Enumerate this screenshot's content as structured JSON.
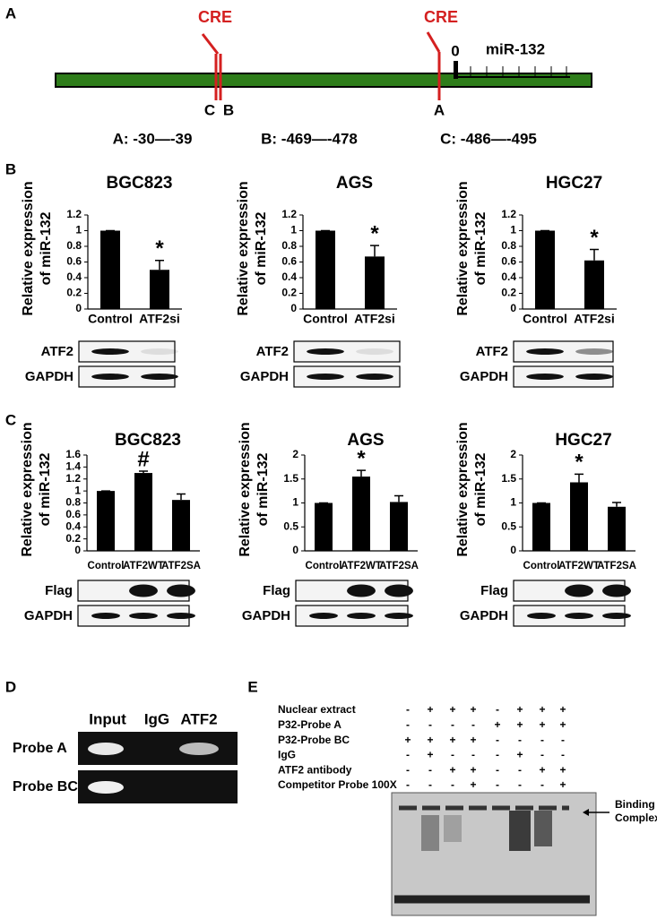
{
  "panel_letters": [
    "A",
    "B",
    "C",
    "D",
    "E"
  ],
  "panel_a": {
    "cre_labels": [
      "CRE",
      "CRE"
    ],
    "tss": "0",
    "gene": "miR-132",
    "site_labels": [
      "C",
      "B",
      "A"
    ],
    "positions": [
      "A: -30—-39",
      "B: -469—-478",
      "C: -486—-495"
    ]
  },
  "chart_data": [
    {
      "type": "bar",
      "title": "BGC823",
      "y_label": [
        "Relative expression",
        "of miR-132"
      ],
      "categories": [
        "Control",
        "ATF2si"
      ],
      "values": [
        1,
        0.5
      ],
      "errors": [
        0,
        0.12
      ],
      "value_annotations": [
        null,
        "*"
      ],
      "color": "#000000",
      "ylim": [
        0,
        1.2
      ],
      "yticks": [
        0,
        0.2,
        0.4,
        0.6,
        0.8,
        1,
        1.2
      ],
      "blot_labels": [
        "ATF2",
        "GAPDH"
      ]
    },
    {
      "type": "bar",
      "title": "AGS",
      "y_label": [
        "Relative expression",
        "of miR-132"
      ],
      "categories": [
        "Control",
        "ATF2si"
      ],
      "values": [
        1,
        0.67
      ],
      "errors": [
        0,
        0.14
      ],
      "value_annotations": [
        null,
        "*"
      ],
      "color": "#000000",
      "ylim": [
        0,
        1.2
      ],
      "yticks": [
        0,
        0.2,
        0.4,
        0.6,
        0.8,
        1,
        1.2
      ],
      "blot_labels": [
        "ATF2",
        "GAPDH"
      ]
    },
    {
      "type": "bar",
      "title": "HGC27",
      "y_label": [
        "Relative expression",
        "of miR-132"
      ],
      "categories": [
        "Control",
        "ATF2si"
      ],
      "values": [
        1,
        0.62
      ],
      "errors": [
        0,
        0.14
      ],
      "value_annotations": [
        null,
        "*"
      ],
      "color": "#000000",
      "ylim": [
        0,
        1.2
      ],
      "yticks": [
        0,
        0.2,
        0.4,
        0.6,
        0.8,
        1,
        1.2
      ],
      "blot_labels": [
        "ATF2",
        "GAPDH"
      ]
    },
    {
      "type": "bar",
      "title": "BGC823",
      "y_label": [
        "Relative expression",
        "of miR-132"
      ],
      "categories": [
        "Control",
        "ATF2WT",
        "ATF2SA"
      ],
      "values": [
        1,
        1.3,
        0.85
      ],
      "errors": [
        0,
        0.03,
        0.1
      ],
      "value_annotations": [
        null,
        "#",
        null
      ],
      "color": "#000000",
      "ylim": [
        0,
        1.6
      ],
      "yticks": [
        0,
        0.2,
        0.4,
        0.6,
        0.8,
        1,
        1.2,
        1.4,
        1.6
      ],
      "blot_labels": [
        "Flag",
        "GAPDH"
      ]
    },
    {
      "type": "bar",
      "title": "AGS",
      "y_label": [
        "Relative expression",
        "of miR-132"
      ],
      "categories": [
        "Control",
        "ATF2WT",
        "ATF2SA"
      ],
      "values": [
        1,
        1.55,
        1.02
      ],
      "errors": [
        0,
        0.13,
        0.13
      ],
      "value_annotations": [
        null,
        "*",
        null
      ],
      "color": "#000000",
      "ylim": [
        0,
        2
      ],
      "yticks": [
        0,
        0.5,
        1,
        1.5,
        2
      ],
      "blot_labels": [
        "Flag",
        "GAPDH"
      ]
    },
    {
      "type": "bar",
      "title": "HGC27",
      "y_label": [
        "Relative expression",
        "of miR-132"
      ],
      "categories": [
        "Control",
        "ATF2WT",
        "ATF2SA"
      ],
      "values": [
        1,
        1.43,
        0.92
      ],
      "errors": [
        0,
        0.17,
        0.09
      ],
      "value_annotations": [
        null,
        "*",
        null
      ],
      "color": "#000000",
      "ylim": [
        0,
        2
      ],
      "yticks": [
        0,
        0.5,
        1,
        1.5,
        2
      ],
      "blot_labels": [
        "Flag",
        "GAPDH"
      ]
    }
  ],
  "panel_d": {
    "columns": [
      "Input",
      "IgG",
      "ATF2"
    ],
    "rows": [
      "Probe A",
      "Probe BC"
    ]
  },
  "panel_e": {
    "rows": [
      {
        "label": "Nuclear extract",
        "signs": [
          "-",
          "+",
          "+",
          "+",
          "-",
          "+",
          "+",
          "+"
        ]
      },
      {
        "label": "P32-Probe A",
        "signs": [
          "-",
          "-",
          "-",
          "-",
          "+",
          "+",
          "+",
          "+"
        ]
      },
      {
        "label": "P32-Probe BC",
        "signs": [
          "+",
          "+",
          "+",
          "+",
          "-",
          "-",
          "-",
          "-"
        ]
      },
      {
        "label": "IgG",
        "signs": [
          "-",
          "+",
          "-",
          "-",
          "-",
          "+",
          "-",
          "-"
        ]
      },
      {
        "label": "ATF2 antibody",
        "signs": [
          "-",
          "-",
          "+",
          "+",
          "-",
          "-",
          "+",
          "+"
        ]
      },
      {
        "label": "Competitor Probe 100X",
        "signs": [
          "-",
          "-",
          "-",
          "+",
          "-",
          "-",
          "-",
          "+"
        ]
      }
    ],
    "annotation": [
      "Binding",
      "Complex"
    ]
  }
}
